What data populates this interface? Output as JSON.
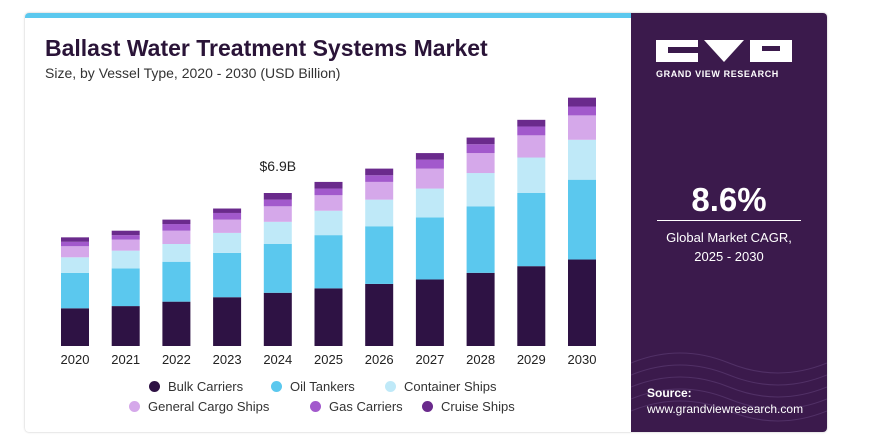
{
  "colors": {
    "accent_stripe": "#5bc8ee",
    "side_bg": "#3b1a4c",
    "text_dark": "#2a1438"
  },
  "header": {
    "title": "Ballast Water Treatment Systems Market",
    "subtitle": "Size, by Vessel Type, 2020 - 2030 (USD Billion)"
  },
  "chart_data": {
    "type": "bar",
    "stacked": true,
    "title": "Ballast Water Treatment Systems Market",
    "subtitle": "Size, by Vessel Type, 2020 - 2030 (USD Billion)",
    "categories": [
      "2020",
      "2021",
      "2022",
      "2023",
      "2024",
      "2025",
      "2026",
      "2027",
      "2028",
      "2029",
      "2030"
    ],
    "series": [
      {
        "name": "Bulk Carriers",
        "color": "#2e1244",
        "values": [
          1.7,
          1.8,
          2.0,
          2.2,
          2.4,
          2.6,
          2.8,
          3.0,
          3.3,
          3.6,
          3.9
        ]
      },
      {
        "name": "Oil Tankers",
        "color": "#5bc8ee",
        "values": [
          1.6,
          1.7,
          1.8,
          2.0,
          2.2,
          2.4,
          2.6,
          2.8,
          3.0,
          3.3,
          3.6
        ]
      },
      {
        "name": "Container Ships",
        "color": "#bfe9f8",
        "values": [
          0.7,
          0.8,
          0.8,
          0.9,
          1.0,
          1.1,
          1.2,
          1.3,
          1.5,
          1.6,
          1.8
        ]
      },
      {
        "name": "General Cargo Ships",
        "color": "#d5a8ea",
        "values": [
          0.5,
          0.5,
          0.6,
          0.6,
          0.7,
          0.7,
          0.8,
          0.9,
          0.9,
          1.0,
          1.1
        ]
      },
      {
        "name": "Gas Carriers",
        "color": "#a259cc",
        "values": [
          0.2,
          0.2,
          0.3,
          0.3,
          0.3,
          0.3,
          0.3,
          0.4,
          0.4,
          0.4,
          0.4
        ]
      },
      {
        "name": "Cruise Ships",
        "color": "#6a2a8c",
        "values": [
          0.2,
          0.2,
          0.2,
          0.2,
          0.3,
          0.3,
          0.3,
          0.3,
          0.3,
          0.3,
          0.4
        ]
      }
    ],
    "annotations": [
      {
        "category": "2024",
        "text": "$6.9B"
      }
    ],
    "ylim": [
      0,
      11.5
    ],
    "grid": false,
    "legend": "bottom"
  },
  "legend_rows": [
    [
      "Bulk Carriers",
      "Oil Tankers",
      "Container Ships"
    ],
    [
      "General Cargo Ships",
      "Gas Carriers",
      "Cruise Ships"
    ]
  ],
  "side_panel": {
    "brand": "GRAND VIEW RESEARCH",
    "logo_icon": "grand-view-research-logo",
    "cagr_value": "8.6%",
    "cagr_label_line1": "Global Market CAGR,",
    "cagr_label_line2": "2025 - 2030",
    "source_label": "Source:",
    "source_url": "www.grandviewresearch.com"
  }
}
